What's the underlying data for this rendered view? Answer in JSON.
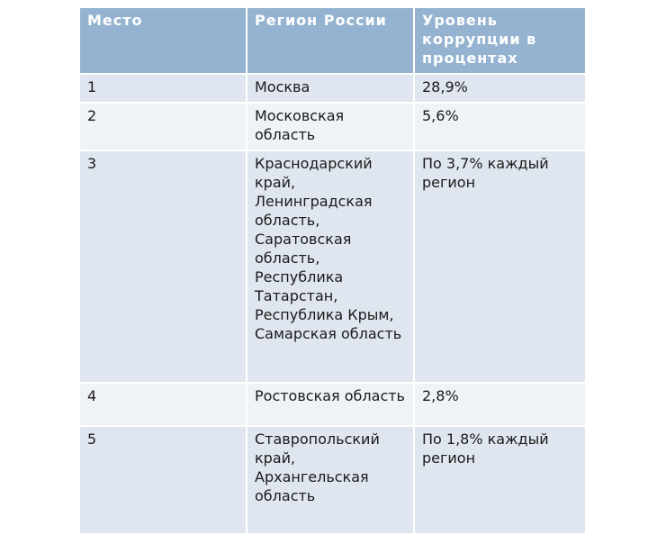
{
  "table": {
    "headers": [
      "Место",
      "Регион России",
      "Уровень коррупции в процентах"
    ],
    "rows": [
      {
        "place": "1",
        "region": "Москва",
        "level": "28,9%"
      },
      {
        "place": "2",
        "region": "Московская область",
        "level": "5,6%"
      },
      {
        "place": "3",
        "region": "Краснодарский край, Ленинградская область, Саратовская область, Республика Татарстан, Республика Крым, Самарская область",
        "level": "По 3,7% каждый регион"
      },
      {
        "place": "4",
        "region": "Ростовская область",
        "level": "2,8%"
      },
      {
        "place": "5",
        "region": "Ставропольский край, Архангельская область",
        "level": "По 1,8% каждый регион"
      }
    ]
  },
  "colors": {
    "header_bg": "#95b3d0",
    "row_odd_bg": "#dfe6ef",
    "row_even_bg": "#eff2f7"
  }
}
